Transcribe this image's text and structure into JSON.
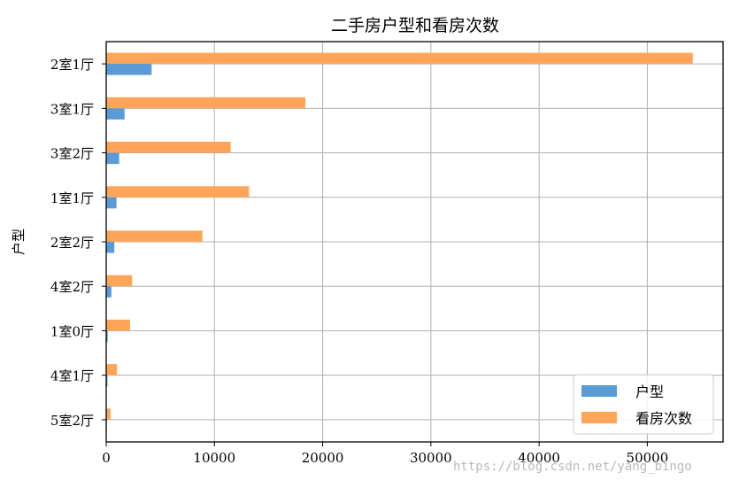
{
  "chart_data": {
    "type": "bar",
    "orientation": "horizontal",
    "title": "二手房户型和看房次数",
    "xlabel": "",
    "ylabel": "户型",
    "categories": [
      "2室1厅",
      "3室1厅",
      "3室2厅",
      "1室1厅",
      "2室2厅",
      "4室2厅",
      "1室0厅",
      "4室1厅",
      "5室2厅"
    ],
    "series": [
      {
        "name": "户型",
        "color": "#5b9bd5",
        "values": [
          4200,
          1700,
          1200,
          950,
          750,
          480,
          140,
          120,
          60
        ]
      },
      {
        "name": "看房次数",
        "color": "#ffa55a",
        "values": [
          54200,
          18400,
          11500,
          13200,
          8900,
          2400,
          2200,
          1000,
          400
        ]
      }
    ],
    "xlim": [
      0,
      57000
    ],
    "xticks": [
      0,
      10000,
      20000,
      30000,
      40000,
      50000
    ],
    "grid": true,
    "legend_position": "bottom-right"
  },
  "watermark": "https://blog.csdn.net/yang_bingo"
}
